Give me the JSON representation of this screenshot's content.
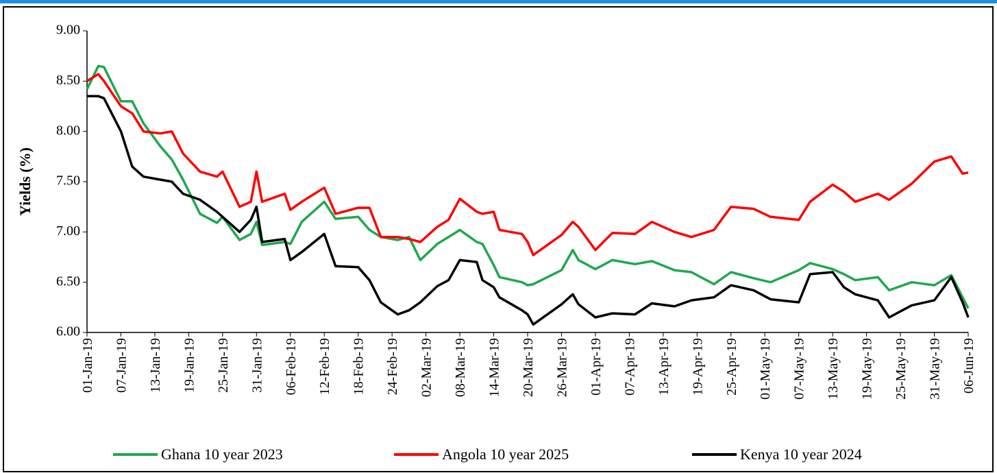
{
  "chart_data": {
    "type": "line",
    "y_label": "Yields (%)",
    "x": [
      "2019-01-01",
      "2019-01-03",
      "2019-01-04",
      "2019-01-07",
      "2019-01-09",
      "2019-01-11",
      "2019-01-14",
      "2019-01-16",
      "2019-01-18",
      "2019-01-21",
      "2019-01-24",
      "2019-01-25",
      "2019-01-28",
      "2019-01-30",
      "2019-01-31",
      "2019-02-01",
      "2019-02-05",
      "2019-02-06",
      "2019-02-08",
      "2019-02-12",
      "2019-02-14",
      "2019-02-18",
      "2019-02-20",
      "2019-02-22",
      "2019-02-25",
      "2019-02-27",
      "2019-03-01",
      "2019-03-04",
      "2019-03-06",
      "2019-03-08",
      "2019-03-11",
      "2019-03-12",
      "2019-03-14",
      "2019-03-15",
      "2019-03-19",
      "2019-03-20",
      "2019-03-21",
      "2019-03-26",
      "2019-03-28",
      "2019-03-29",
      "2019-04-01",
      "2019-04-04",
      "2019-04-08",
      "2019-04-11",
      "2019-04-15",
      "2019-04-18",
      "2019-04-22",
      "2019-04-25",
      "2019-04-29",
      "2019-05-02",
      "2019-05-07",
      "2019-05-09",
      "2019-05-13",
      "2019-05-15",
      "2019-05-17",
      "2019-05-21",
      "2019-05-23",
      "2019-05-27",
      "2019-05-31",
      "2019-06-03",
      "2019-06-05",
      "2019-06-06"
    ],
    "series": [
      {
        "name": "Ghana 10 year 2023",
        "color": "#1fa84f",
        "values": [
          8.42,
          8.65,
          8.64,
          8.3,
          8.3,
          8.08,
          7.85,
          7.72,
          7.52,
          7.18,
          7.09,
          7.15,
          6.92,
          6.98,
          7.1,
          6.87,
          6.9,
          6.88,
          7.1,
          7.3,
          7.13,
          7.15,
          7.02,
          6.95,
          6.92,
          6.95,
          6.72,
          6.88,
          6.95,
          7.02,
          6.9,
          6.88,
          6.67,
          6.55,
          6.5,
          6.47,
          6.48,
          6.62,
          6.82,
          6.72,
          6.63,
          6.72,
          6.68,
          6.71,
          6.62,
          6.6,
          6.48,
          6.6,
          6.54,
          6.5,
          6.62,
          6.69,
          6.63,
          6.58,
          6.52,
          6.55,
          6.42,
          6.5,
          6.47,
          6.57,
          6.35,
          6.24
        ]
      },
      {
        "name": "Angola 10 year 2025",
        "color": "#ff0000",
        "values": [
          8.5,
          8.57,
          8.5,
          8.25,
          8.18,
          8.0,
          7.98,
          8.0,
          7.78,
          7.6,
          7.55,
          7.6,
          7.25,
          7.3,
          7.6,
          7.3,
          7.38,
          7.22,
          7.3,
          7.44,
          7.18,
          7.24,
          7.24,
          6.95,
          6.95,
          6.93,
          6.9,
          7.05,
          7.12,
          7.33,
          7.2,
          7.18,
          7.2,
          7.02,
          6.98,
          6.9,
          6.77,
          6.97,
          7.1,
          7.05,
          6.82,
          6.99,
          6.98,
          7.1,
          7.0,
          6.95,
          7.02,
          7.25,
          7.23,
          7.15,
          7.12,
          7.3,
          7.47,
          7.4,
          7.3,
          7.38,
          7.32,
          7.48,
          7.7,
          7.75,
          7.58,
          7.59
        ]
      },
      {
        "name": "Kenya 10 year 2024",
        "color": "#000000",
        "values": [
          8.35,
          8.35,
          8.33,
          8.0,
          7.65,
          7.55,
          7.52,
          7.5,
          7.38,
          7.32,
          7.2,
          7.15,
          7.0,
          7.12,
          7.25,
          6.9,
          6.93,
          6.72,
          6.8,
          6.98,
          6.66,
          6.65,
          6.52,
          6.3,
          6.18,
          6.22,
          6.3,
          6.46,
          6.52,
          6.72,
          6.7,
          6.52,
          6.45,
          6.35,
          6.22,
          6.18,
          6.08,
          6.28,
          6.38,
          6.28,
          6.15,
          6.19,
          6.18,
          6.29,
          6.26,
          6.32,
          6.35,
          6.47,
          6.42,
          6.33,
          6.3,
          6.58,
          6.6,
          6.45,
          6.38,
          6.32,
          6.15,
          6.27,
          6.32,
          6.55,
          6.3,
          6.15
        ]
      }
    ],
    "xlim": [
      "2019-01-01",
      "2019-06-06"
    ],
    "xticks": [
      {
        "value": "2019-01-01",
        "label": "01-Jan-19"
      },
      {
        "value": "2019-01-07",
        "label": "07-Jan-19"
      },
      {
        "value": "2019-01-13",
        "label": "13-Jan-19"
      },
      {
        "value": "2019-01-19",
        "label": "19-Jan-19"
      },
      {
        "value": "2019-01-25",
        "label": "25-Jan-19"
      },
      {
        "value": "2019-01-31",
        "label": "31-Jan-19"
      },
      {
        "value": "2019-02-06",
        "label": "06-Feb-19"
      },
      {
        "value": "2019-02-12",
        "label": "12-Feb-19"
      },
      {
        "value": "2019-02-18",
        "label": "18-Feb-19"
      },
      {
        "value": "2019-02-24",
        "label": "24-Feb-19"
      },
      {
        "value": "2019-03-02",
        "label": "02-Mar-19"
      },
      {
        "value": "2019-03-08",
        "label": "08-Mar-19"
      },
      {
        "value": "2019-03-14",
        "label": "14-Mar-19"
      },
      {
        "value": "2019-03-20",
        "label": "20-Mar-19"
      },
      {
        "value": "2019-03-26",
        "label": "26-Mar-19"
      },
      {
        "value": "2019-04-01",
        "label": "01-Apr-19"
      },
      {
        "value": "2019-04-07",
        "label": "07-Apr-19"
      },
      {
        "value": "2019-04-13",
        "label": "13-Apr-19"
      },
      {
        "value": "2019-04-19",
        "label": "19-Apr-19"
      },
      {
        "value": "2019-04-25",
        "label": "25-Apr-19"
      },
      {
        "value": "2019-05-01",
        "label": "01-May-19"
      },
      {
        "value": "2019-05-07",
        "label": "07-May-19"
      },
      {
        "value": "2019-05-13",
        "label": "13-May-19"
      },
      {
        "value": "2019-05-19",
        "label": "19-May-19"
      },
      {
        "value": "2019-05-25",
        "label": "25-May-19"
      },
      {
        "value": "2019-05-31",
        "label": "31-May-19"
      },
      {
        "value": "2019-06-06",
        "label": "06-Jun-19"
      }
    ],
    "ylim": [
      6,
      9
    ],
    "yticks": [
      {
        "value": 6,
        "label": "6.00"
      },
      {
        "value": 6.5,
        "label": "6.50"
      },
      {
        "value": 7,
        "label": "7.00"
      },
      {
        "value": 7.5,
        "label": "7.50"
      },
      {
        "value": 8,
        "label": "8.00"
      },
      {
        "value": 8.5,
        "label": "8.50"
      },
      {
        "value": 9,
        "label": "9.00"
      }
    ],
    "grid": false,
    "legend": "bottom"
  }
}
